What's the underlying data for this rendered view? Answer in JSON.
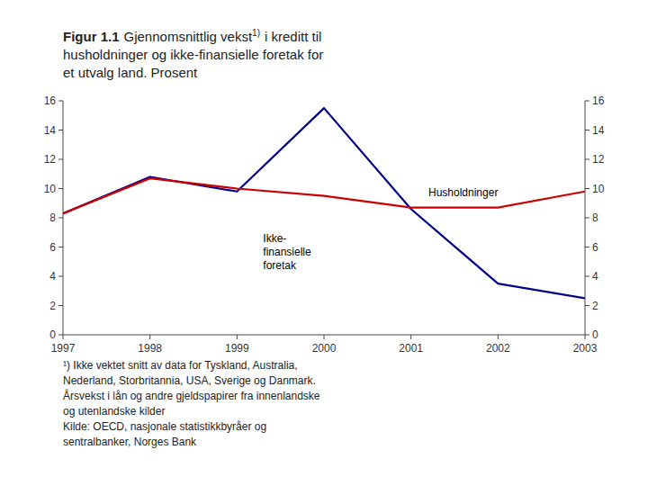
{
  "chart_data": {
    "type": "line",
    "title": "Figur 1.1",
    "subtitle": [
      "Gjennomsnittlig vekst",
      "1)",
      "i kreditt til",
      "husholdninger og ikke-finansielle foretak for",
      "et utvalg land. Prosent"
    ],
    "x": [
      1997,
      1998,
      1999,
      2000,
      2001,
      2002,
      2003
    ],
    "series": [
      {
        "color": "#00008B",
        "values": [
          8.3,
          10.8,
          9.8,
          15.5,
          8.6,
          3.5,
          2.5
        ]
      },
      {
        "color": "#cc0000",
        "values": [
          8.3,
          10.7,
          10.0,
          9.5,
          8.7,
          8.7,
          9.8
        ]
      }
    ],
    "xlim": [
      1997,
      2003
    ],
    "xticks": [
      1997,
      1998,
      1999,
      2000,
      2001,
      2002,
      2003
    ],
    "ylim": [
      0,
      16
    ],
    "yticks": [
      0,
      2,
      4,
      6,
      8,
      10,
      12,
      14,
      16
    ],
    "y2lim": [
      0,
      16
    ],
    "y2ticks": [
      0,
      2,
      4,
      6,
      8,
      10,
      12,
      14,
      16
    ],
    "grid": false,
    "annotations": [
      {
        "text": "Husholdninger",
        "x": 2001.2,
        "y": 9.5
      },
      {
        "text": "Ikke-\nfinansielle\nforetak",
        "x": 1999.3,
        "y": 4.5
      }
    ],
    "footnote": [
      "¹) Ikke vektet snitt av data for Tyskland, Australia,",
      "Nederland, Storbritannia, USA, Sverige og Danmark.",
      "Årsvekst i lån og andre gjeldspapirer fra innenlandske",
      "og utenlandske kilder",
      "Kilde: OECD, nasjonale statistikkbyråer og",
      "sentralbanker, Norges Bank"
    ]
  }
}
